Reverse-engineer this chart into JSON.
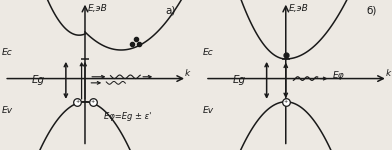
{
  "bg_color": "#ede9e3",
  "panel_a": {
    "label": "а)",
    "axis_label_E": "E,эВ",
    "axis_label_k": "k",
    "label_Ec": "Ec",
    "label_Ev": "Ev",
    "label_Eg": "Eg",
    "annotation": "Eφ=Eg ± ε'"
  },
  "panel_b": {
    "label": "б)",
    "axis_label_E": "E,эВ",
    "axis_label_k": "k",
    "label_Ec": "Ec",
    "label_Ev": "Ev",
    "label_Eg": "Eg",
    "annotation": "Eφ"
  },
  "line_color": "#1a1a1a",
  "text_color": "#1a1a1a",
  "font_size": 6.5
}
